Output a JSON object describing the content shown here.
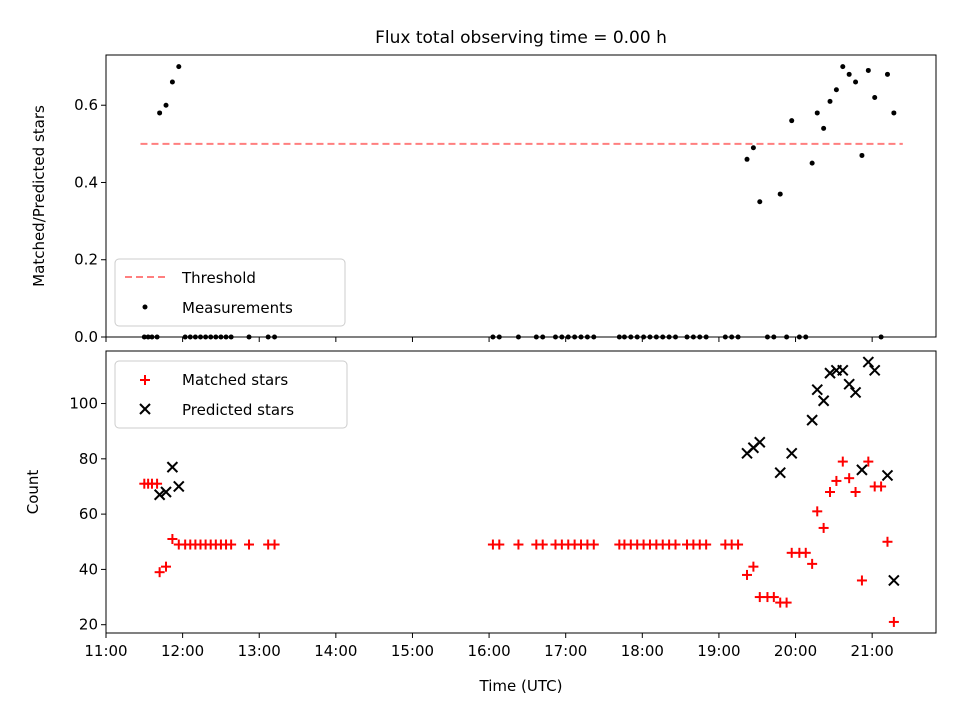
{
  "chart_data": [
    {
      "type": "scatter",
      "title": "Flux total observing time = 0.00 h",
      "xlabel": "",
      "ylabel": "Matched/Predicted stars",
      "xlim": [
        "11:00",
        "21:50"
      ],
      "ylim": [
        0,
        0.73
      ],
      "yticks": [
        0,
        0.2,
        0.4,
        0.6
      ],
      "ytick_labels": [
        "0.0",
        "0.2",
        "0.4",
        "0.6"
      ],
      "legend_position": "lower-left",
      "threshold": {
        "name": "Threshold",
        "value": 0.5,
        "x_range": [
          "11:27",
          "21:24"
        ],
        "color": "#ff7f7f",
        "style": "dashed"
      },
      "series": [
        {
          "name": "Measurements",
          "marker": "dot",
          "color": "#000000",
          "points": [
            [
              "11:30",
              0.0
            ],
            [
              "11:33",
              0.0
            ],
            [
              "11:36",
              0.0
            ],
            [
              "11:40",
              0.0
            ],
            [
              "11:42",
              0.58
            ],
            [
              "11:47",
              0.6
            ],
            [
              "11:52",
              0.66
            ],
            [
              "11:57",
              0.7
            ],
            [
              "12:02",
              0.0
            ],
            [
              "12:06",
              0.0
            ],
            [
              "12:10",
              0.0
            ],
            [
              "12:14",
              0.0
            ],
            [
              "12:18",
              0.0
            ],
            [
              "12:22",
              0.0
            ],
            [
              "12:26",
              0.0
            ],
            [
              "12:30",
              0.0
            ],
            [
              "12:34",
              0.0
            ],
            [
              "12:38",
              0.0
            ],
            [
              "12:52",
              0.0
            ],
            [
              "13:07",
              0.0
            ],
            [
              "13:12",
              0.0
            ],
            [
              "16:03",
              0.0
            ],
            [
              "16:08",
              0.0
            ],
            [
              "16:23",
              0.0
            ],
            [
              "16:37",
              0.0
            ],
            [
              "16:42",
              0.0
            ],
            [
              "16:52",
              0.0
            ],
            [
              "16:57",
              0.0
            ],
            [
              "17:02",
              0.0
            ],
            [
              "17:07",
              0.0
            ],
            [
              "17:12",
              0.0
            ],
            [
              "17:17",
              0.0
            ],
            [
              "17:22",
              0.0
            ],
            [
              "17:42",
              0.0
            ],
            [
              "17:46",
              0.0
            ],
            [
              "17:51",
              0.0
            ],
            [
              "17:56",
              0.0
            ],
            [
              "18:01",
              0.0
            ],
            [
              "18:06",
              0.0
            ],
            [
              "18:11",
              0.0
            ],
            [
              "18:16",
              0.0
            ],
            [
              "18:21",
              0.0
            ],
            [
              "18:26",
              0.0
            ],
            [
              "18:35",
              0.0
            ],
            [
              "18:40",
              0.0
            ],
            [
              "18:45",
              0.0
            ],
            [
              "18:50",
              0.0
            ],
            [
              "19:05",
              0.0
            ],
            [
              "19:10",
              0.0
            ],
            [
              "19:15",
              0.0
            ],
            [
              "19:22",
              0.46
            ],
            [
              "19:27",
              0.49
            ],
            [
              "19:32",
              0.35
            ],
            [
              "19:38",
              0.0
            ],
            [
              "19:43",
              0.0
            ],
            [
              "19:48",
              0.37
            ],
            [
              "19:53",
              0.0
            ],
            [
              "19:57",
              0.56
            ],
            [
              "20:03",
              0.0
            ],
            [
              "20:08",
              0.0
            ],
            [
              "20:13",
              0.45
            ],
            [
              "20:17",
              0.58
            ],
            [
              "20:22",
              0.54
            ],
            [
              "20:27",
              0.61
            ],
            [
              "20:32",
              0.64
            ],
            [
              "20:37",
              0.7
            ],
            [
              "20:42",
              0.68
            ],
            [
              "20:47",
              0.66
            ],
            [
              "20:52",
              0.47
            ],
            [
              "20:57",
              0.69
            ],
            [
              "21:02",
              0.62
            ],
            [
              "21:07",
              0.0
            ],
            [
              "21:12",
              0.68
            ],
            [
              "21:17",
              0.58
            ]
          ]
        }
      ]
    },
    {
      "type": "scatter",
      "title": "",
      "xlabel": "Time (UTC)",
      "ylabel": "Count",
      "xlim": [
        "11:00",
        "21:50"
      ],
      "ylim": [
        17,
        119
      ],
      "yticks": [
        20,
        40,
        60,
        80,
        100
      ],
      "ytick_labels": [
        "20",
        "40",
        "60",
        "80",
        "100"
      ],
      "xticks": [
        "11:00",
        "12:00",
        "13:00",
        "14:00",
        "15:00",
        "16:00",
        "17:00",
        "18:00",
        "19:00",
        "20:00",
        "21:00"
      ],
      "legend_position": "upper-left",
      "series": [
        {
          "name": "Matched stars",
          "marker": "plus",
          "color": "#ff0000",
          "points": [
            [
              "11:30",
              71
            ],
            [
              "11:33",
              71
            ],
            [
              "11:36",
              71
            ],
            [
              "11:40",
              71
            ],
            [
              "11:42",
              39
            ],
            [
              "11:47",
              41
            ],
            [
              "11:52",
              51
            ],
            [
              "11:57",
              49
            ],
            [
              "12:02",
              49
            ],
            [
              "12:06",
              49
            ],
            [
              "12:10",
              49
            ],
            [
              "12:14",
              49
            ],
            [
              "12:18",
              49
            ],
            [
              "12:22",
              49
            ],
            [
              "12:26",
              49
            ],
            [
              "12:30",
              49
            ],
            [
              "12:34",
              49
            ],
            [
              "12:38",
              49
            ],
            [
              "12:52",
              49
            ],
            [
              "13:07",
              49
            ],
            [
              "13:12",
              49
            ],
            [
              "16:03",
              49
            ],
            [
              "16:08",
              49
            ],
            [
              "16:23",
              49
            ],
            [
              "16:37",
              49
            ],
            [
              "16:42",
              49
            ],
            [
              "16:52",
              49
            ],
            [
              "16:57",
              49
            ],
            [
              "17:02",
              49
            ],
            [
              "17:07",
              49
            ],
            [
              "17:12",
              49
            ],
            [
              "17:17",
              49
            ],
            [
              "17:22",
              49
            ],
            [
              "17:42",
              49
            ],
            [
              "17:46",
              49
            ],
            [
              "17:51",
              49
            ],
            [
              "17:56",
              49
            ],
            [
              "18:01",
              49
            ],
            [
              "18:06",
              49
            ],
            [
              "18:11",
              49
            ],
            [
              "18:16",
              49
            ],
            [
              "18:21",
              49
            ],
            [
              "18:26",
              49
            ],
            [
              "18:35",
              49
            ],
            [
              "18:40",
              49
            ],
            [
              "18:45",
              49
            ],
            [
              "18:50",
              49
            ],
            [
              "19:05",
              49
            ],
            [
              "19:10",
              49
            ],
            [
              "19:15",
              49
            ],
            [
              "19:22",
              38
            ],
            [
              "19:27",
              41
            ],
            [
              "19:32",
              30
            ],
            [
              "19:38",
              30
            ],
            [
              "19:43",
              30
            ],
            [
              "19:48",
              28
            ],
            [
              "19:53",
              28
            ],
            [
              "19:57",
              46
            ],
            [
              "20:03",
              46
            ],
            [
              "20:08",
              46
            ],
            [
              "20:13",
              42
            ],
            [
              "20:17",
              61
            ],
            [
              "20:22",
              55
            ],
            [
              "20:27",
              68
            ],
            [
              "20:32",
              72
            ],
            [
              "20:37",
              79
            ],
            [
              "20:42",
              73
            ],
            [
              "20:47",
              68
            ],
            [
              "20:52",
              36
            ],
            [
              "20:57",
              79
            ],
            [
              "21:02",
              70
            ],
            [
              "21:07",
              70
            ],
            [
              "21:12",
              50
            ],
            [
              "21:17",
              21
            ]
          ]
        },
        {
          "name": "Predicted stars",
          "marker": "x",
          "color": "#000000",
          "points": [
            [
              "11:42",
              67
            ],
            [
              "11:47",
              68
            ],
            [
              "11:52",
              77
            ],
            [
              "11:57",
              70
            ],
            [
              "19:22",
              82
            ],
            [
              "19:27",
              84
            ],
            [
              "19:32",
              86
            ],
            [
              "19:48",
              75
            ],
            [
              "19:57",
              82
            ],
            [
              "20:13",
              94
            ],
            [
              "20:17",
              105
            ],
            [
              "20:22",
              101
            ],
            [
              "20:27",
              111
            ],
            [
              "20:32",
              112
            ],
            [
              "20:37",
              112
            ],
            [
              "20:42",
              107
            ],
            [
              "20:47",
              104
            ],
            [
              "20:52",
              76
            ],
            [
              "20:57",
              115
            ],
            [
              "21:02",
              112
            ],
            [
              "21:12",
              74
            ],
            [
              "21:17",
              36
            ]
          ]
        }
      ]
    }
  ]
}
